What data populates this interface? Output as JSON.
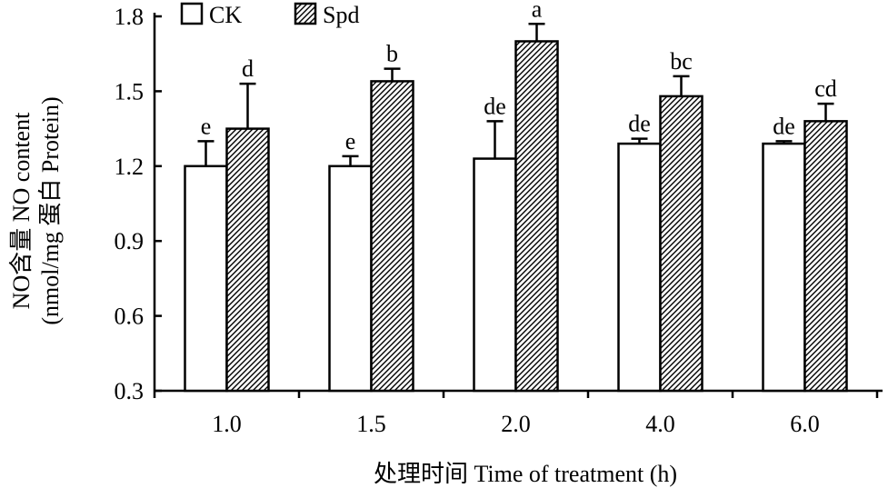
{
  "chart_data": {
    "type": "bar",
    "categories": [
      "1.0",
      "1.5",
      "2.0",
      "4.0",
      "6.0"
    ],
    "xlabel": "处理时间 Time of treatment (h)",
    "ylabel_line1": "NO含量 NO content",
    "ylabel_line2": "(nmol/mg 蛋白 Protein)",
    "ylim": [
      0.3,
      1.8
    ],
    "yticks": [
      0.3,
      0.6,
      0.9,
      1.2,
      1.5,
      1.8
    ],
    "ytick_labels": [
      "0.3",
      "0.6",
      "0.9",
      "1.2",
      "1.5",
      "1.8"
    ],
    "legend_position": "top-left",
    "grid": false,
    "series": [
      {
        "name": "CK",
        "values": [
          1.2,
          1.2,
          1.23,
          1.29,
          1.29
        ],
        "errors": [
          0.1,
          0.04,
          0.15,
          0.02,
          0.01
        ],
        "labels": [
          "e",
          "e",
          "de",
          "de",
          "de"
        ],
        "fill": "#ffffff"
      },
      {
        "name": "Spd",
        "values": [
          1.35,
          1.54,
          1.7,
          1.48,
          1.38
        ],
        "errors": [
          0.18,
          0.05,
          0.07,
          0.08,
          0.07
        ],
        "labels": [
          "d",
          "b",
          "a",
          "bc",
          "cd"
        ],
        "fill": "hatched"
      }
    ]
  }
}
